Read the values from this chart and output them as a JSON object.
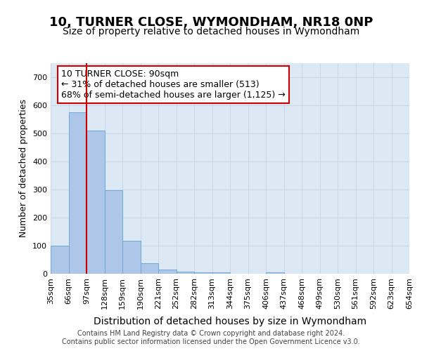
{
  "title": "10, TURNER CLOSE, WYMONDHAM, NR18 0NP",
  "subtitle": "Size of property relative to detached houses in Wymondham",
  "xlabel": "Distribution of detached houses by size in Wymondham",
  "ylabel": "Number of detached properties",
  "bins": [
    "35sqm",
    "66sqm",
    "97sqm",
    "128sqm",
    "159sqm",
    "190sqm",
    "221sqm",
    "252sqm",
    "282sqm",
    "313sqm",
    "344sqm",
    "375sqm",
    "406sqm",
    "437sqm",
    "468sqm",
    "499sqm",
    "530sqm",
    "561sqm",
    "592sqm",
    "623sqm",
    "654sqm"
  ],
  "bar_values": [
    100,
    575,
    510,
    298,
    117,
    37,
    15,
    8,
    5,
    5,
    0,
    0,
    6,
    0,
    0,
    0,
    0,
    0,
    0,
    0
  ],
  "bar_color": "#aec6e8",
  "bar_edge_color": "#6fa8d6",
  "grid_color": "#c8d8ea",
  "background_color": "#dce9f5",
  "vline_color": "#cc0000",
  "annotation_text": "10 TURNER CLOSE: 90sqm\n← 31% of detached houses are smaller (513)\n68% of semi-detached houses are larger (1,125) →",
  "annotation_box_color": "#ffffff",
  "annotation_box_edge": "#cc0000",
  "ylim": [
    0,
    750
  ],
  "yticks": [
    0,
    100,
    200,
    300,
    400,
    500,
    600,
    700
  ],
  "footer": "Contains HM Land Registry data © Crown copyright and database right 2024.\nContains public sector information licensed under the Open Government Licence v3.0.",
  "title_fontsize": 13,
  "subtitle_fontsize": 10,
  "xlabel_fontsize": 10,
  "ylabel_fontsize": 9,
  "tick_fontsize": 8,
  "annot_fontsize": 9
}
